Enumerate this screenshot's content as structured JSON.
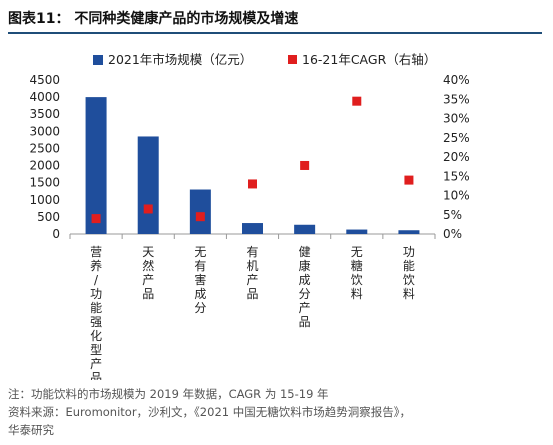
{
  "figure_title": "图表11：  不同种类健康产品的市场规模及增速",
  "footnotes": [
    "注：功能饮料的市场规模为 2019 年数据，CAGR 为 15-19 年",
    "资料来源：Euromonitor，沙利文，《2021 中国无糖饮料市场趋势洞察报告》，",
    "华泰研究"
  ],
  "colors": {
    "bar": "#1f4e9c",
    "marker": "#e01e1e",
    "axis": "#999999",
    "text": "#222222",
    "title_rule": "#1f4e79"
  },
  "chart_data": {
    "type": "bar",
    "categories": [
      "营养/功能强化型产品",
      "天然产品",
      "无有害成分",
      "有机产品",
      "健康成分产品",
      "无糖饮料",
      "功能饮料"
    ],
    "series": [
      {
        "name": "2021年市场规模（亿元）",
        "type": "bar",
        "axis": "left",
        "values": [
          4000,
          2850,
          1300,
          320,
          270,
          130,
          110
        ]
      },
      {
        "name": "16-21年CAGR（右轴）",
        "type": "scatter",
        "axis": "right",
        "values": [
          0.04,
          0.065,
          0.045,
          0.13,
          0.178,
          0.345,
          0.14
        ]
      }
    ],
    "y_left": {
      "min": 0,
      "max": 4500,
      "step": 500,
      "ticks": [
        "0",
        "500",
        "1000",
        "1500",
        "2000",
        "2500",
        "3000",
        "3500",
        "4000",
        "4500"
      ]
    },
    "y_right": {
      "min": 0,
      "max": 0.4,
      "step": 0.05,
      "ticks": [
        "0%",
        "5%",
        "10%",
        "15%",
        "20%",
        "25%",
        "30%",
        "35%",
        "40%"
      ]
    },
    "legend_position": "top",
    "grid": false
  }
}
